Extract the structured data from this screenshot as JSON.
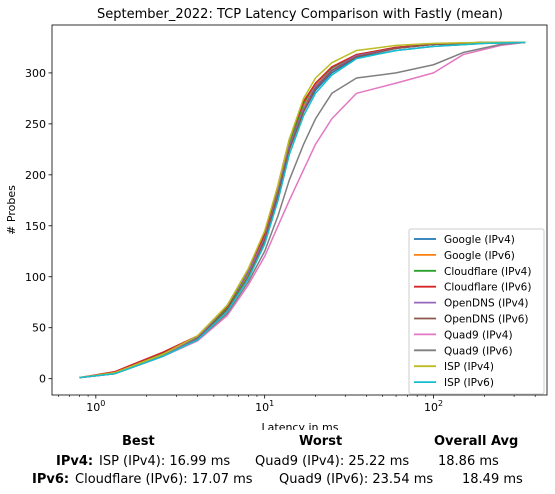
{
  "chart_data": {
    "type": "line",
    "title": "September_2022: TCP Latency Comparison with Fastly (mean)",
    "xlabel": "Latency in ms",
    "ylabel": "# Probes",
    "xscale": "log",
    "xlim": [
      0.55,
      470
    ],
    "ylim": [
      -16,
      347
    ],
    "x_ticks": [
      {
        "value": 1,
        "base": "10",
        "exp": "0"
      },
      {
        "value": 10,
        "base": "10",
        "exp": "1"
      },
      {
        "value": 100,
        "base": "10",
        "exp": "2"
      }
    ],
    "y_ticks": [
      0,
      50,
      100,
      150,
      200,
      250,
      300
    ],
    "legend_position": "lower right",
    "grid": false,
    "series": [
      {
        "name": "Google (IPv4)",
        "color": "#1f77b4",
        "points": [
          [
            0.8,
            1
          ],
          [
            1.3,
            6
          ],
          [
            2.5,
            23
          ],
          [
            4,
            38
          ],
          [
            6,
            68
          ],
          [
            8,
            100
          ],
          [
            10,
            135
          ],
          [
            12,
            180
          ],
          [
            14,
            225
          ],
          [
            17,
            262
          ],
          [
            20,
            283
          ],
          [
            25,
            300
          ],
          [
            35,
            315
          ],
          [
            60,
            322
          ],
          [
            100,
            326
          ],
          [
            200,
            329
          ],
          [
            350,
            330
          ]
        ]
      },
      {
        "name": "Google (IPv6)",
        "color": "#ff7f0e",
        "points": [
          [
            0.8,
            1
          ],
          [
            1.3,
            5
          ],
          [
            2.5,
            24
          ],
          [
            4,
            40
          ],
          [
            6,
            70
          ],
          [
            8,
            103
          ],
          [
            10,
            140
          ],
          [
            12,
            185
          ],
          [
            14,
            230
          ],
          [
            17,
            268
          ],
          [
            20,
            288
          ],
          [
            25,
            305
          ],
          [
            35,
            318
          ],
          [
            60,
            325
          ],
          [
            100,
            328
          ],
          [
            200,
            330
          ],
          [
            350,
            330
          ]
        ]
      },
      {
        "name": "Cloudflare (IPv4)",
        "color": "#2ca02c",
        "points": [
          [
            0.8,
            1
          ],
          [
            1.3,
            6
          ],
          [
            2.5,
            25
          ],
          [
            4,
            41
          ],
          [
            6,
            70
          ],
          [
            8,
            104
          ],
          [
            10,
            140
          ],
          [
            12,
            185
          ],
          [
            14,
            230
          ],
          [
            17,
            270
          ],
          [
            20,
            290
          ],
          [
            25,
            305
          ],
          [
            35,
            318
          ],
          [
            60,
            325
          ],
          [
            100,
            328
          ],
          [
            200,
            330
          ],
          [
            350,
            330
          ]
        ]
      },
      {
        "name": "Cloudflare (IPv6)",
        "color": "#d62728",
        "points": [
          [
            0.8,
            1
          ],
          [
            1.3,
            7
          ],
          [
            2.5,
            26
          ],
          [
            4,
            42
          ],
          [
            6,
            71
          ],
          [
            8,
            106
          ],
          [
            10,
            142
          ],
          [
            12,
            190
          ],
          [
            14,
            235
          ],
          [
            17,
            272
          ],
          [
            20,
            290
          ],
          [
            25,
            306
          ],
          [
            35,
            318
          ],
          [
            60,
            325
          ],
          [
            100,
            328
          ],
          [
            200,
            330
          ],
          [
            350,
            330
          ]
        ]
      },
      {
        "name": "OpenDNS (IPv4)",
        "color": "#9467bd",
        "points": [
          [
            0.8,
            1
          ],
          [
            1.3,
            5
          ],
          [
            2.5,
            23
          ],
          [
            4,
            40
          ],
          [
            6,
            72
          ],
          [
            8,
            105
          ],
          [
            10,
            138
          ],
          [
            12,
            183
          ],
          [
            14,
            228
          ],
          [
            17,
            265
          ],
          [
            20,
            287
          ],
          [
            25,
            303
          ],
          [
            35,
            317
          ],
          [
            60,
            324
          ],
          [
            100,
            328
          ],
          [
            200,
            330
          ],
          [
            350,
            330
          ]
        ]
      },
      {
        "name": "OpenDNS (IPv6)",
        "color": "#8c564b",
        "points": [
          [
            0.8,
            1
          ],
          [
            1.3,
            5
          ],
          [
            2.5,
            22
          ],
          [
            4,
            39
          ],
          [
            6,
            68
          ],
          [
            8,
            100
          ],
          [
            10,
            136
          ],
          [
            12,
            180
          ],
          [
            14,
            225
          ],
          [
            17,
            262
          ],
          [
            20,
            285
          ],
          [
            25,
            302
          ],
          [
            35,
            316
          ],
          [
            60,
            324
          ],
          [
            100,
            328
          ],
          [
            200,
            330
          ],
          [
            350,
            330
          ]
        ]
      },
      {
        "name": "Quad9 (IPv4)",
        "color": "#e377c2",
        "points": [
          [
            0.8,
            1
          ],
          [
            1.3,
            5
          ],
          [
            2.5,
            22
          ],
          [
            4,
            37
          ],
          [
            6,
            62
          ],
          [
            8,
            92
          ],
          [
            10,
            120
          ],
          [
            12,
            150
          ],
          [
            14,
            175
          ],
          [
            17,
            205
          ],
          [
            20,
            230
          ],
          [
            25,
            255
          ],
          [
            35,
            280
          ],
          [
            60,
            290
          ],
          [
            100,
            300
          ],
          [
            150,
            318
          ],
          [
            250,
            327
          ],
          [
            350,
            330
          ]
        ]
      },
      {
        "name": "Quad9 (IPv6)",
        "color": "#7f7f7f",
        "points": [
          [
            0.8,
            1
          ],
          [
            1.3,
            5
          ],
          [
            2.5,
            23
          ],
          [
            4,
            38
          ],
          [
            6,
            64
          ],
          [
            8,
            95
          ],
          [
            10,
            125
          ],
          [
            12,
            160
          ],
          [
            14,
            195
          ],
          [
            17,
            230
          ],
          [
            20,
            255
          ],
          [
            25,
            280
          ],
          [
            35,
            295
          ],
          [
            60,
            300
          ],
          [
            100,
            308
          ],
          [
            150,
            320
          ],
          [
            250,
            328
          ],
          [
            350,
            330
          ]
        ]
      },
      {
        "name": "ISP (IPv4)",
        "color": "#bcbd22",
        "points": [
          [
            0.8,
            1
          ],
          [
            1.3,
            6
          ],
          [
            2.5,
            24
          ],
          [
            4,
            42
          ],
          [
            6,
            72
          ],
          [
            8,
            108
          ],
          [
            10,
            145
          ],
          [
            12,
            190
          ],
          [
            14,
            235
          ],
          [
            17,
            275
          ],
          [
            20,
            295
          ],
          [
            25,
            310
          ],
          [
            35,
            322
          ],
          [
            60,
            327
          ],
          [
            100,
            329
          ],
          [
            200,
            330
          ],
          [
            350,
            330
          ]
        ]
      },
      {
        "name": "ISP (IPv6)",
        "color": "#17becf",
        "points": [
          [
            0.8,
            1
          ],
          [
            1.3,
            5
          ],
          [
            2.5,
            22
          ],
          [
            4,
            38
          ],
          [
            6,
            66
          ],
          [
            8,
            98
          ],
          [
            10,
            132
          ],
          [
            12,
            175
          ],
          [
            14,
            220
          ],
          [
            17,
            258
          ],
          [
            20,
            280
          ],
          [
            25,
            298
          ],
          [
            35,
            314
          ],
          [
            60,
            322
          ],
          [
            100,
            326
          ],
          [
            200,
            329
          ],
          [
            350,
            330
          ]
        ]
      }
    ]
  },
  "summary": {
    "headers": {
      "best": "Best",
      "worst": "Worst",
      "avg": "Overall Avg"
    },
    "rows": [
      {
        "label": "IPv4:",
        "best": "ISP (IPv4): 16.99 ms",
        "worst": "Quad9 (IPv4): 25.22 ms",
        "avg": "18.86 ms"
      },
      {
        "label": "IPv6:",
        "best": "Cloudflare (IPv6): 17.07 ms",
        "worst": "Quad9 (IPv6): 23.54 ms",
        "avg": "18.49 ms"
      }
    ]
  }
}
